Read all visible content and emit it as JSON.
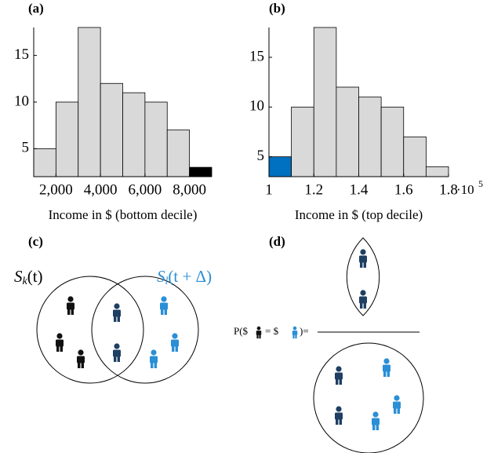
{
  "chart_data": [
    {
      "type": "histogram",
      "panel": "(a)",
      "x_label": "Income in $ (bottom decile)",
      "bins": [
        1000,
        2000,
        3000,
        4000,
        5000,
        6000,
        7000,
        8000,
        9000
      ],
      "values": [
        5,
        10,
        18,
        12,
        11,
        10,
        7,
        3
      ],
      "colors": [
        "#d9d9d9",
        "#d9d9d9",
        "#d9d9d9",
        "#d9d9d9",
        "#d9d9d9",
        "#d9d9d9",
        "#d9d9d9",
        "#000000"
      ],
      "xlim": [
        1000,
        9000
      ],
      "ylim": [
        2,
        18
      ],
      "xticks": [
        {
          "value": 2000,
          "label": "2,000"
        },
        {
          "value": 4000,
          "label": "4,000"
        },
        {
          "value": 6000,
          "label": "6,000"
        },
        {
          "value": 8000,
          "label": "8,000"
        }
      ],
      "yticks": [
        5,
        10,
        15
      ]
    },
    {
      "type": "histogram",
      "panel": "(b)",
      "x_label": "Income in $ (top decile)",
      "bins": [
        1,
        1.1,
        1.2,
        1.3,
        1.4,
        1.5,
        1.6,
        1.7,
        1.8
      ],
      "values": [
        5,
        10,
        18,
        12,
        11,
        10,
        7,
        4
      ],
      "colors": [
        "#0070c0",
        "#d9d9d9",
        "#d9d9d9",
        "#d9d9d9",
        "#d9d9d9",
        "#d9d9d9",
        "#d9d9d9",
        "#d9d9d9"
      ],
      "xlim": [
        1,
        1.8
      ],
      "ylim": [
        3,
        18
      ],
      "xticks": [
        1,
        1.2,
        1.4,
        1.6,
        1.8
      ],
      "x_multiplier": {
        "base": "·10",
        "exponent": "5"
      },
      "yticks": [
        5,
        10,
        15
      ]
    }
  ],
  "diagram_c": {
    "panel": "(c)",
    "set_k": {
      "main": "S",
      "sub": "k",
      "rest": "(t)"
    },
    "set_l": {
      "main": "S",
      "sub": "l",
      "rest": "(t + Δ)"
    }
  },
  "diagram_d": {
    "panel": "(d)",
    "formula": {
      "start": "P($",
      "middle": "= $",
      "end": ")="
    }
  }
}
